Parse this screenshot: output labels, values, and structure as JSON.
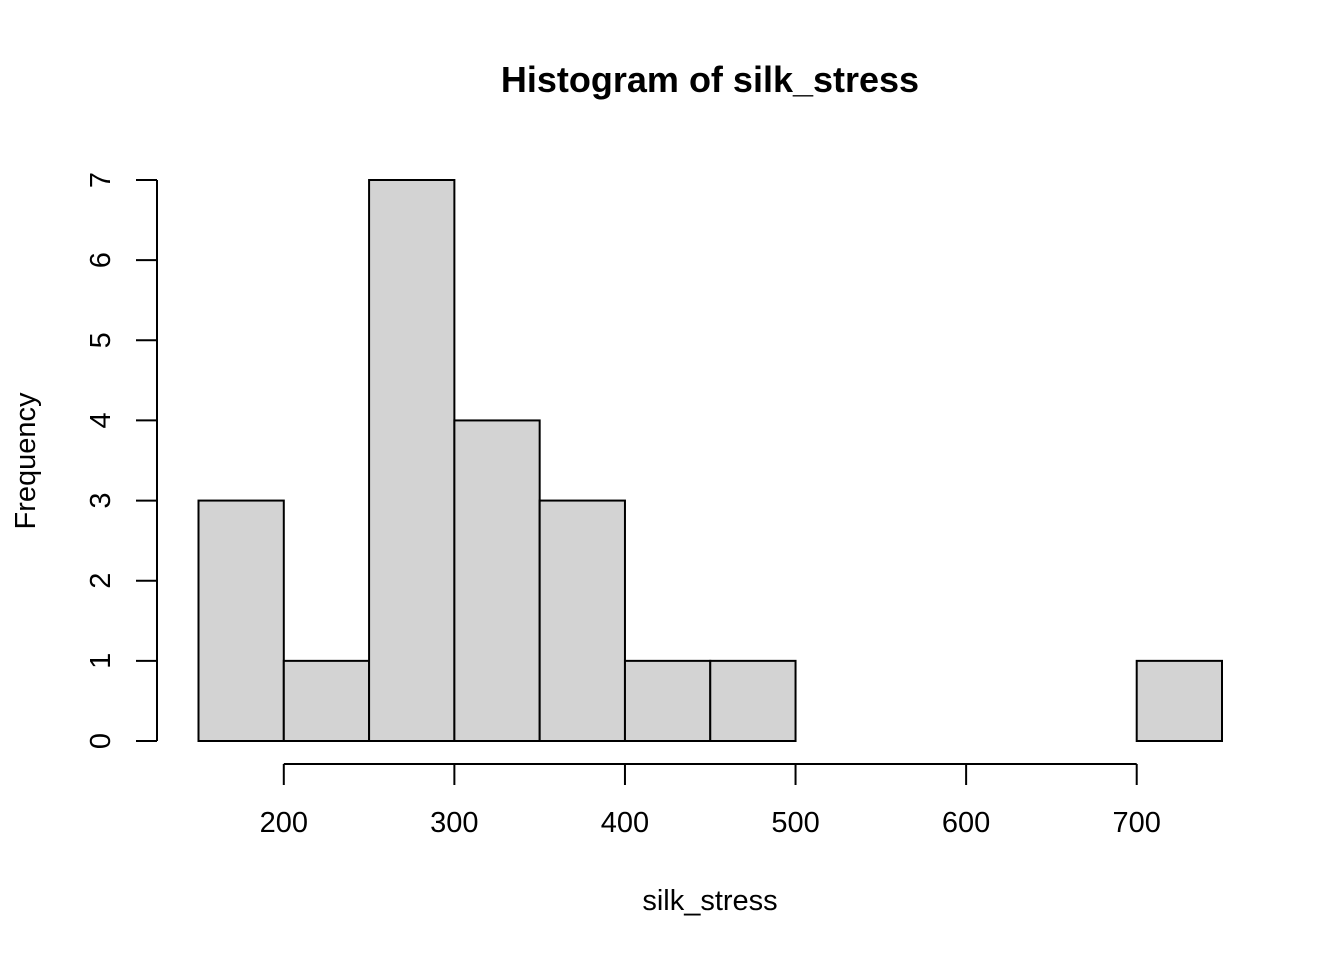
{
  "chart_data": {
    "type": "bar",
    "title": "Histogram of silk_stress",
    "xlabel": "silk_stress",
    "ylabel": "Frequency",
    "bins": [
      {
        "from": 150,
        "to": 200,
        "count": 3
      },
      {
        "from": 200,
        "to": 250,
        "count": 1
      },
      {
        "from": 250,
        "to": 300,
        "count": 7
      },
      {
        "from": 300,
        "to": 350,
        "count": 4
      },
      {
        "from": 350,
        "to": 400,
        "count": 3
      },
      {
        "from": 400,
        "to": 450,
        "count": 1
      },
      {
        "from": 450,
        "to": 500,
        "count": 1
      },
      {
        "from": 500,
        "to": 550,
        "count": 0
      },
      {
        "from": 550,
        "to": 600,
        "count": 0
      },
      {
        "from": 600,
        "to": 650,
        "count": 0
      },
      {
        "from": 650,
        "to": 700,
        "count": 0
      },
      {
        "from": 700,
        "to": 750,
        "count": 1
      }
    ],
    "x_ticks": [
      200,
      300,
      400,
      500,
      600,
      700
    ],
    "y_ticks": [
      0,
      1,
      2,
      3,
      4,
      5,
      6,
      7
    ],
    "xlim": [
      150,
      750
    ],
    "ylim": [
      0,
      7
    ],
    "grid": false,
    "bar_color": "#d3d3d3",
    "border_color": "#000000"
  }
}
